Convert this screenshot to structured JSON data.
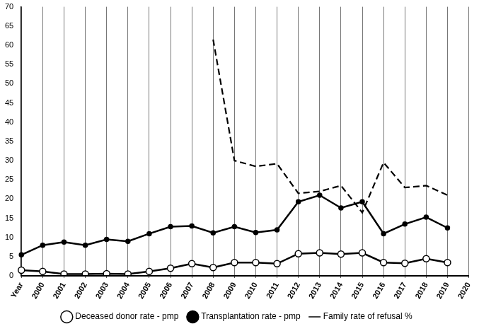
{
  "chart_data": {
    "type": "line",
    "categories": [
      "Year",
      "2000",
      "2001",
      "2002",
      "2003",
      "2004",
      "2005",
      "2006",
      "2007",
      "2008",
      "2009",
      "2010",
      "2011",
      "2012",
      "2013",
      "2014",
      "2015",
      "2016",
      "2017",
      "2018",
      "2019",
      "2020"
    ],
    "series": [
      {
        "name": "Deceased donor rate - pmp",
        "color": "#000000",
        "marker": "open_circle",
        "line_style": "solid",
        "values": [
          1.5,
          1.2,
          0.5,
          0.5,
          0.6,
          0.5,
          1.2,
          2,
          3.2,
          2.2,
          3.5,
          3.5,
          3.2,
          5.8,
          6,
          5.7,
          6,
          3.5,
          3.3,
          4.5,
          3.5,
          null
        ]
      },
      {
        "name": "Transplantation rate - pmp",
        "color": "#000000",
        "marker": "filled_circle",
        "line_style": "solid",
        "values": [
          5.5,
          8,
          8.8,
          8,
          9.5,
          9,
          11,
          12.8,
          13,
          11.2,
          12.8,
          11.3,
          12,
          19.3,
          21,
          17.7,
          19.3,
          11,
          13.5,
          15.3,
          12.5,
          null
        ]
      },
      {
        "name": "Family rate of refusal %",
        "color": "#000000",
        "marker": "none",
        "line_style": "dashed",
        "values": [
          null,
          null,
          null,
          null,
          null,
          null,
          null,
          null,
          null,
          61.5,
          30,
          28.5,
          29.2,
          21.5,
          22,
          23.5,
          16.5,
          29.5,
          23,
          23.5,
          21,
          null
        ]
      }
    ],
    "ylim": [
      0,
      70
    ],
    "yticks": [
      0,
      5,
      10,
      15,
      20,
      25,
      30,
      35,
      40,
      45,
      50,
      55,
      60,
      65,
      70
    ],
    "grid": true,
    "legend": "bottom"
  }
}
